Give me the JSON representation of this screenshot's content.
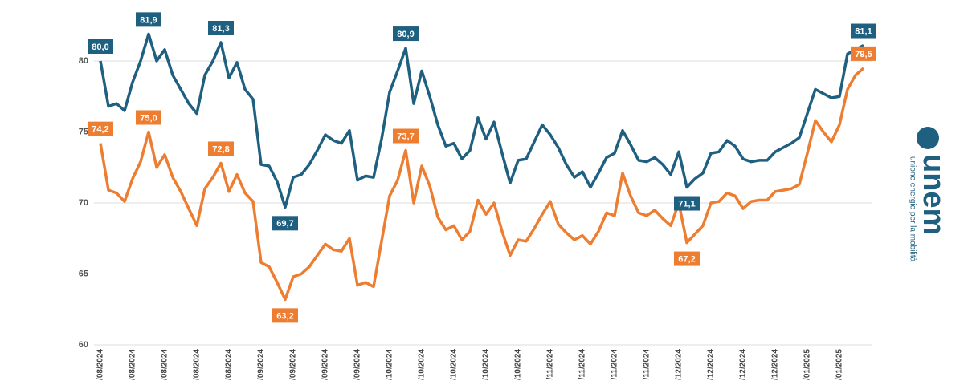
{
  "chart_data": {
    "type": "line",
    "categories": [
      "/08/2024",
      null,
      null,
      null,
      "/08/2024",
      null,
      null,
      null,
      "/08/2024",
      null,
      null,
      null,
      "/08/2024",
      null,
      null,
      null,
      "/08/2024",
      null,
      null,
      null,
      "/09/2024",
      null,
      null,
      null,
      "/09/2024",
      null,
      null,
      null,
      "/09/2024",
      null,
      null,
      null,
      "/09/2024",
      null,
      null,
      null,
      "/10/2024",
      null,
      null,
      null,
      "/10/2024",
      null,
      null,
      null,
      "/10/2024",
      null,
      null,
      null,
      "/10/2024",
      null,
      null,
      null,
      "/10/2024",
      null,
      null,
      null,
      "/11/2024",
      null,
      null,
      null,
      "/11/2024",
      null,
      null,
      null,
      "/11/2024",
      null,
      null,
      null,
      "/11/2024",
      null,
      null,
      null,
      "/12/2024",
      null,
      null,
      null,
      "/12/2024",
      null,
      null,
      null,
      "/12/2024",
      null,
      null,
      null,
      "/12/2024",
      null,
      null,
      null,
      "/01/2025",
      null,
      null,
      null,
      "/01/2025",
      null,
      null,
      null
    ],
    "series": [
      {
        "color": "#1f5f80",
        "values": [
          80.0,
          76.8,
          77.0,
          76.5,
          78.5,
          80.0,
          81.9,
          80.0,
          80.8,
          79.0,
          78.0,
          77.0,
          76.3,
          79.0,
          80.0,
          81.3,
          78.8,
          79.9,
          78.0,
          77.3,
          72.7,
          72.6,
          71.5,
          69.7,
          71.8,
          72.0,
          72.7,
          73.7,
          74.8,
          74.4,
          74.2,
          75.1,
          71.6,
          71.9,
          71.8,
          74.5,
          77.8,
          79.3,
          80.9,
          77.0,
          79.3,
          77.5,
          75.5,
          74.0,
          74.2,
          73.1,
          73.7,
          76.0,
          74.5,
          75.7,
          73.5,
          71.4,
          73.0,
          73.1,
          74.3,
          75.5,
          74.8,
          73.9,
          72.7,
          71.8,
          72.2,
          71.1,
          72.1,
          73.2,
          73.5,
          75.1,
          74.1,
          73.0,
          72.9,
          73.2,
          72.7,
          72.0,
          73.6,
          71.1,
          71.7,
          72.1,
          73.5,
          73.6,
          74.4,
          74.0,
          73.1,
          72.9,
          73.0,
          73.0,
          73.6,
          73.9,
          74.2,
          74.6,
          76.3,
          78.0,
          77.7,
          77.4,
          77.5,
          80.5,
          80.8,
          81.1
        ],
        "value_labels": [
          "80,0",
          null,
          null,
          null,
          null,
          null,
          "81,9",
          null,
          null,
          null,
          null,
          null,
          null,
          null,
          null,
          "81,3",
          null,
          null,
          null,
          null,
          null,
          null,
          null,
          "69,7",
          null,
          null,
          null,
          null,
          null,
          null,
          null,
          null,
          null,
          null,
          null,
          null,
          null,
          null,
          "80,9",
          null,
          null,
          null,
          null,
          null,
          null,
          null,
          null,
          null,
          null,
          null,
          null,
          null,
          null,
          null,
          null,
          null,
          null,
          null,
          null,
          null,
          null,
          null,
          null,
          null,
          null,
          null,
          null,
          null,
          null,
          null,
          null,
          null,
          null,
          "71,1",
          null,
          null,
          null,
          null,
          null,
          null,
          null,
          null,
          null,
          null,
          null,
          null,
          null,
          null,
          null,
          null,
          null,
          null,
          null,
          null,
          null,
          "81,1"
        ]
      },
      {
        "color": "#ed7d31",
        "values": [
          74.2,
          70.9,
          70.7,
          70.1,
          71.7,
          72.9,
          75.0,
          72.5,
          73.4,
          71.8,
          70.8,
          69.6,
          68.4,
          71.0,
          71.8,
          72.8,
          70.8,
          72.0,
          70.7,
          70.1,
          65.8,
          65.5,
          64.4,
          63.2,
          64.8,
          65.0,
          65.5,
          66.3,
          67.1,
          66.7,
          66.6,
          67.5,
          64.2,
          64.4,
          64.1,
          67.3,
          70.5,
          71.6,
          73.7,
          70.0,
          72.6,
          71.2,
          69.0,
          68.1,
          68.4,
          67.4,
          68.0,
          70.2,
          69.2,
          70.0,
          68.0,
          66.3,
          67.4,
          67.3,
          68.2,
          69.2,
          70.1,
          68.5,
          67.9,
          67.4,
          67.7,
          67.1,
          68.0,
          69.3,
          69.1,
          72.1,
          70.5,
          69.3,
          69.1,
          69.5,
          68.9,
          68.4,
          70.0,
          67.2,
          67.8,
          68.4,
          70.0,
          70.1,
          70.7,
          70.5,
          69.6,
          70.1,
          70.2,
          70.2,
          70.8,
          70.9,
          71.0,
          71.3,
          73.5,
          75.8,
          75.0,
          74.3,
          75.5,
          78.0,
          79.0,
          79.5
        ],
        "value_labels": [
          "74,2",
          null,
          null,
          null,
          null,
          null,
          "75,0",
          null,
          null,
          null,
          null,
          null,
          null,
          null,
          null,
          "72,8",
          null,
          null,
          null,
          null,
          null,
          null,
          null,
          "63,2",
          null,
          null,
          null,
          null,
          null,
          null,
          null,
          null,
          null,
          null,
          null,
          null,
          null,
          null,
          "73,7",
          null,
          null,
          null,
          null,
          null,
          null,
          null,
          null,
          null,
          null,
          null,
          null,
          null,
          null,
          null,
          null,
          null,
          null,
          null,
          null,
          null,
          null,
          null,
          null,
          null,
          null,
          null,
          null,
          null,
          null,
          null,
          null,
          null,
          null,
          "67,2",
          null,
          null,
          null,
          null,
          null,
          null,
          null,
          null,
          null,
          null,
          null,
          null,
          null,
          null,
          null,
          null,
          null,
          null,
          null,
          null,
          null,
          "79,5"
        ]
      }
    ],
    "ylim": [
      60,
      82
    ],
    "yticks": [
      60,
      65,
      70,
      75,
      80
    ],
    "grid": true
  },
  "logo": {
    "name": "unem",
    "tagline": "unione energie per la mobilità"
  }
}
